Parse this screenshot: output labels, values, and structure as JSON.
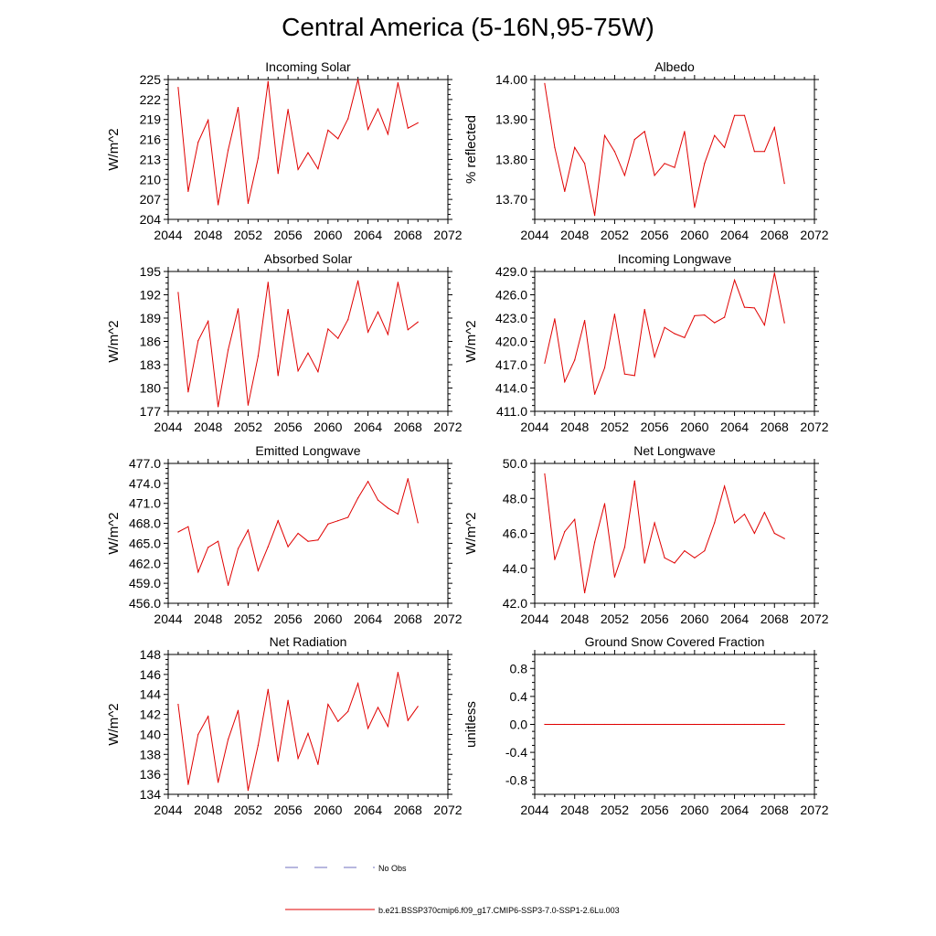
{
  "figure": {
    "title": "Central America (5-16N,95-75W)",
    "series_color": "#e00000",
    "legend": [
      {
        "label": "No Obs",
        "style": "dashed",
        "color": "#6f6fbf"
      },
      {
        "label": "b.e21.BSSP370cmip6.f09_g17.CMIP6-SSP3-7.0-SSP1-2.6Lu.003",
        "style": "solid",
        "color": "#e00000"
      }
    ]
  },
  "chart_data": [
    {
      "type": "line",
      "title": "Incoming Solar",
      "ylabel": "W/m^2",
      "xlim": [
        2044,
        2072
      ],
      "xticks": [
        "2044",
        "2048",
        "2052",
        "2056",
        "2060",
        "2064",
        "2068",
        "2072"
      ],
      "ylim": [
        204,
        225
      ],
      "yticks": [
        "204",
        "207",
        "210",
        "213",
        "216",
        "219",
        "222",
        "225"
      ],
      "x": [
        2045,
        2046,
        2047,
        2048,
        2049,
        2050,
        2051,
        2052,
        2053,
        2054,
        2055,
        2056,
        2057,
        2058,
        2059,
        2060,
        2061,
        2062,
        2063,
        2064,
        2065,
        2066,
        2067,
        2068,
        2069
      ],
      "values": [
        223.8,
        208.2,
        215.6,
        218.9,
        206.2,
        214.4,
        220.8,
        206.4,
        213.2,
        224.7,
        210.9,
        220.5,
        211.5,
        214.0,
        211.6,
        217.4,
        216.1,
        219.1,
        225.0,
        217.5,
        220.6,
        216.8,
        224.5,
        217.7,
        218.5
      ]
    },
    {
      "type": "line",
      "title": "Albedo",
      "ylabel": "% reflected",
      "xlim": [
        2044,
        2072
      ],
      "xticks": [
        "2044",
        "2048",
        "2052",
        "2056",
        "2060",
        "2064",
        "2068",
        "2072"
      ],
      "ylim": [
        13.65,
        14.0
      ],
      "yticks": [
        "13.70",
        "13.80",
        "13.90",
        "14.00"
      ],
      "x": [
        2045,
        2046,
        2047,
        2048,
        2049,
        2050,
        2051,
        2052,
        2053,
        2054,
        2055,
        2056,
        2057,
        2058,
        2059,
        2060,
        2061,
        2062,
        2063,
        2064,
        2065,
        2066,
        2067,
        2068,
        2069
      ],
      "values": [
        13.99,
        13.83,
        13.72,
        13.83,
        13.79,
        13.66,
        13.86,
        13.82,
        13.76,
        13.85,
        13.87,
        13.76,
        13.79,
        13.78,
        13.87,
        13.68,
        13.79,
        13.86,
        13.83,
        13.91,
        13.91,
        13.82,
        13.82,
        13.88,
        13.74
      ]
    },
    {
      "type": "line",
      "title": "Absorbed Solar",
      "ylabel": "W/m^2",
      "xlim": [
        2044,
        2072
      ],
      "xticks": [
        "2044",
        "2048",
        "2052",
        "2056",
        "2060",
        "2064",
        "2068",
        "2072"
      ],
      "ylim": [
        177,
        195
      ],
      "yticks": [
        "177",
        "180",
        "183",
        "186",
        "189",
        "192",
        "195"
      ],
      "x": [
        2045,
        2046,
        2047,
        2048,
        2049,
        2050,
        2051,
        2052,
        2053,
        2054,
        2055,
        2056,
        2057,
        2058,
        2059,
        2060,
        2061,
        2062,
        2063,
        2064,
        2065,
        2066,
        2067,
        2068,
        2069
      ],
      "values": [
        192.3,
        179.5,
        186.1,
        188.6,
        177.6,
        184.9,
        190.2,
        177.8,
        184.1,
        193.6,
        181.6,
        190.1,
        182.2,
        184.5,
        182.1,
        187.6,
        186.4,
        188.8,
        193.8,
        187.2,
        189.8,
        186.9,
        193.6,
        187.5,
        188.5
      ]
    },
    {
      "type": "line",
      "title": "Incoming Longwave",
      "ylabel": "W/m^2",
      "xlim": [
        2044,
        2072
      ],
      "xticks": [
        "2044",
        "2048",
        "2052",
        "2056",
        "2060",
        "2064",
        "2068",
        "2072"
      ],
      "ylim": [
        411.0,
        429.0
      ],
      "yticks": [
        "411.0",
        "414.0",
        "417.0",
        "420.0",
        "423.0",
        "426.0",
        "429.0"
      ],
      "x": [
        2045,
        2046,
        2047,
        2048,
        2049,
        2050,
        2051,
        2052,
        2053,
        2054,
        2055,
        2056,
        2057,
        2058,
        2059,
        2060,
        2061,
        2062,
        2063,
        2064,
        2065,
        2066,
        2067,
        2068,
        2069
      ],
      "values": [
        417.2,
        422.9,
        414.8,
        417.6,
        422.7,
        413.2,
        416.6,
        423.5,
        415.8,
        415.6,
        424.1,
        418.0,
        421.8,
        421.0,
        420.5,
        423.3,
        423.4,
        422.4,
        423.1,
        427.9,
        424.4,
        424.3,
        422.1,
        428.8,
        422.4
      ]
    },
    {
      "type": "line",
      "title": "Emitted Longwave",
      "ylabel": "W/m^2",
      "xlim": [
        2044,
        2072
      ],
      "xticks": [
        "2044",
        "2048",
        "2052",
        "2056",
        "2060",
        "2064",
        "2068",
        "2072"
      ],
      "ylim": [
        456.0,
        477.0
      ],
      "yticks": [
        "456.0",
        "459.0",
        "462.0",
        "465.0",
        "468.0",
        "471.0",
        "474.0",
        "477.0"
      ],
      "x": [
        2045,
        2046,
        2047,
        2048,
        2049,
        2050,
        2051,
        2052,
        2053,
        2054,
        2055,
        2056,
        2057,
        2058,
        2059,
        2060,
        2061,
        2062,
        2063,
        2064,
        2065,
        2066,
        2067,
        2068,
        2069
      ],
      "values": [
        466.7,
        467.5,
        460.7,
        464.4,
        465.3,
        458.7,
        464.2,
        467.0,
        460.9,
        464.5,
        468.4,
        464.5,
        466.5,
        465.3,
        465.5,
        467.9,
        468.4,
        468.9,
        471.8,
        474.3,
        471.5,
        470.3,
        469.4,
        474.7,
        468.1
      ]
    },
    {
      "type": "line",
      "title": "Net Longwave",
      "ylabel": "W/m^2",
      "xlim": [
        2044,
        2072
      ],
      "xticks": [
        "2044",
        "2048",
        "2052",
        "2056",
        "2060",
        "2064",
        "2068",
        "2072"
      ],
      "ylim": [
        42.0,
        50.0
      ],
      "yticks": [
        "42.0",
        "44.0",
        "46.0",
        "48.0",
        "50.0"
      ],
      "x": [
        2045,
        2046,
        2047,
        2048,
        2049,
        2050,
        2051,
        2052,
        2053,
        2054,
        2055,
        2056,
        2057,
        2058,
        2059,
        2060,
        2061,
        2062,
        2063,
        2064,
        2065,
        2066,
        2067,
        2068,
        2069
      ],
      "values": [
        49.4,
        44.5,
        46.1,
        46.8,
        42.6,
        45.5,
        47.7,
        43.5,
        45.2,
        49.0,
        44.3,
        46.6,
        44.6,
        44.3,
        45.0,
        44.6,
        45.0,
        46.6,
        48.7,
        46.6,
        47.1,
        46.0,
        47.2,
        46.0,
        45.7
      ]
    },
    {
      "type": "line",
      "title": "Net Radiation",
      "ylabel": "W/m^2",
      "xlim": [
        2044,
        2072
      ],
      "xticks": [
        "2044",
        "2048",
        "2052",
        "2056",
        "2060",
        "2064",
        "2068",
        "2072"
      ],
      "ylim": [
        134,
        148
      ],
      "yticks": [
        "134",
        "136",
        "138",
        "140",
        "142",
        "144",
        "146",
        "148"
      ],
      "x": [
        2045,
        2046,
        2047,
        2048,
        2049,
        2050,
        2051,
        2052,
        2053,
        2054,
        2055,
        2056,
        2057,
        2058,
        2059,
        2060,
        2061,
        2062,
        2063,
        2064,
        2065,
        2066,
        2067,
        2068,
        2069
      ],
      "values": [
        143.0,
        135.0,
        140.0,
        141.8,
        135.2,
        139.5,
        142.4,
        134.4,
        138.9,
        144.5,
        137.3,
        143.4,
        137.6,
        140.1,
        137.0,
        143.0,
        141.3,
        142.3,
        145.1,
        140.6,
        142.7,
        140.8,
        146.2,
        141.4,
        142.8
      ]
    },
    {
      "type": "line",
      "title": "Ground Snow Covered Fraction",
      "ylabel": "unitless",
      "xlim": [
        2044,
        2072
      ],
      "xticks": [
        "2044",
        "2048",
        "2052",
        "2056",
        "2060",
        "2064",
        "2068",
        "2072"
      ],
      "ylim": [
        -1.0,
        1.0
      ],
      "yticks": [
        "-0.8",
        "-0.4",
        "0.0",
        "0.4",
        "0.8"
      ],
      "ytick_values": [
        -0.8,
        -0.4,
        0.0,
        0.4,
        0.8
      ],
      "x": [
        2045,
        2046,
        2047,
        2048,
        2049,
        2050,
        2051,
        2052,
        2053,
        2054,
        2055,
        2056,
        2057,
        2058,
        2059,
        2060,
        2061,
        2062,
        2063,
        2064,
        2065,
        2066,
        2067,
        2068,
        2069
      ],
      "values": [
        0,
        0,
        0,
        0,
        0,
        0,
        0,
        0,
        0,
        0,
        0,
        0,
        0,
        0,
        0,
        0,
        0,
        0,
        0,
        0,
        0,
        0,
        0,
        0,
        0
      ]
    }
  ]
}
